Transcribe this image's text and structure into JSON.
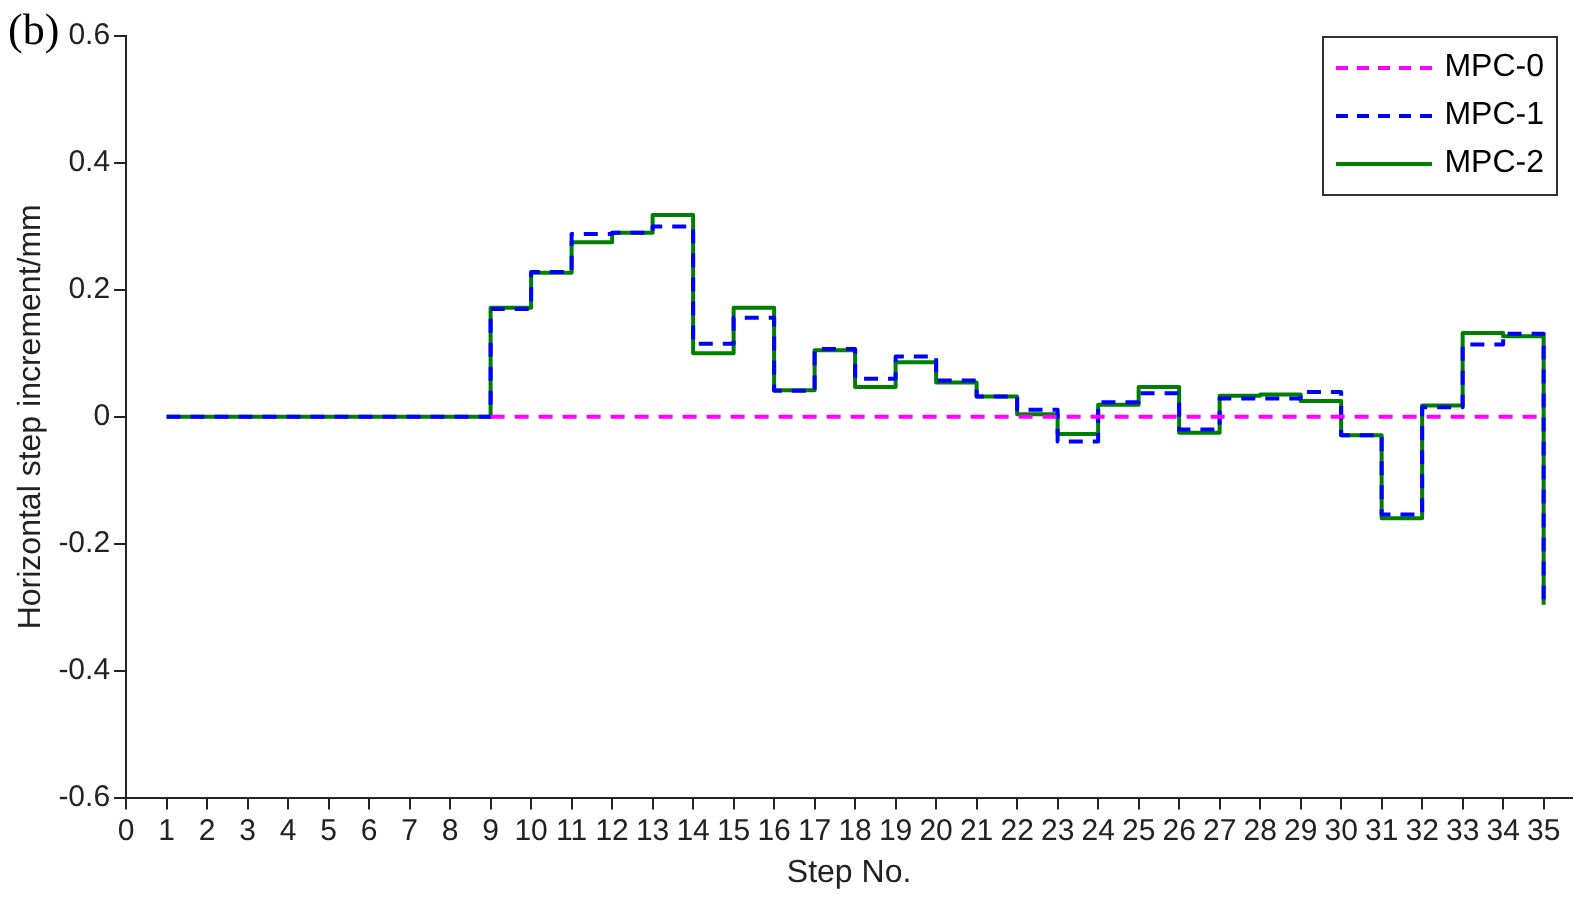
{
  "chart_data": {
    "type": "step",
    "xlabel": "Step No.",
    "ylabel": "Horizontal step increment/mm",
    "annotations": [
      "(b)"
    ],
    "x": [
      1,
      2,
      3,
      4,
      5,
      6,
      7,
      8,
      9,
      10,
      11,
      12,
      13,
      14,
      15,
      16,
      17,
      18,
      19,
      20,
      21,
      22,
      23,
      24,
      25,
      26,
      27,
      28,
      29,
      30,
      31,
      32,
      33,
      34,
      35
    ],
    "series": [
      {
        "name": "MPC-0",
        "color": "#ff00ff",
        "line_style": "dashed",
        "values": [
          null,
          null,
          null,
          null,
          null,
          null,
          null,
          null,
          0,
          0,
          0,
          0,
          0,
          0,
          0,
          0,
          0,
          0,
          0,
          0,
          0,
          0,
          0,
          0,
          0,
          0,
          0,
          0,
          0,
          0,
          0,
          0,
          0,
          0,
          0
        ]
      },
      {
        "name": "MPC-1",
        "color": "#0000ff",
        "line_style": "dashed",
        "values": [
          0,
          0,
          0,
          0,
          0,
          0,
          0,
          0,
          0.17,
          0.228,
          0.288,
          0.29,
          0.3,
          0.115,
          0.156,
          0.041,
          0.107,
          0.06,
          0.095,
          0.057,
          0.032,
          0.011,
          -0.039,
          0.023,
          0.037,
          -0.02,
          0.029,
          0.029,
          0.039,
          -0.029,
          -0.154,
          0.015,
          0.114,
          0.131,
          -0.296
        ]
      },
      {
        "name": "MPC-2",
        "color": "#008000",
        "line_style": "solid",
        "values": [
          0,
          0,
          0,
          0,
          0,
          0,
          0,
          0,
          0.172,
          0.227,
          0.275,
          0.29,
          0.318,
          0.1,
          0.172,
          0.042,
          0.105,
          0.047,
          0.086,
          0.054,
          0.032,
          0.004,
          -0.027,
          0.019,
          0.047,
          -0.025,
          0.033,
          0.035,
          0.025,
          -0.029,
          -0.16,
          0.018,
          0.132,
          0.127,
          -0.296
        ]
      }
    ],
    "xlim": [
      0,
      35.7
    ],
    "xticks": [
      0,
      1,
      2,
      3,
      4,
      5,
      6,
      7,
      8,
      9,
      10,
      11,
      12,
      13,
      14,
      15,
      16,
      17,
      18,
      19,
      20,
      21,
      22,
      23,
      24,
      25,
      26,
      27,
      28,
      29,
      30,
      31,
      32,
      33,
      34,
      35
    ],
    "ylim": [
      -0.6,
      0.6
    ],
    "yticks": [
      -0.6,
      -0.4,
      -0.2,
      0,
      0.2,
      0.4,
      0.6
    ],
    "grid": false,
    "legend": "top right"
  }
}
